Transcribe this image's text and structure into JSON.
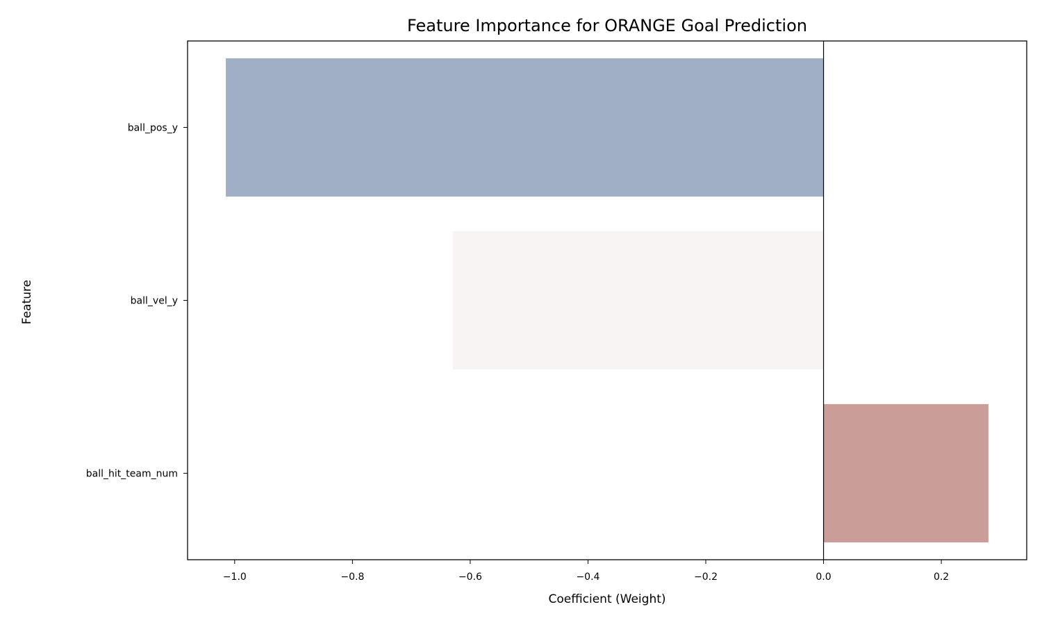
{
  "chart_data": {
    "type": "bar",
    "orientation": "horizontal",
    "title": "Feature Importance for ORANGE Goal Prediction",
    "xlabel": "Coefficient (Weight)",
    "ylabel": "Feature",
    "categories": [
      "ball_pos_y",
      "ball_vel_y",
      "ball_hit_team_num"
    ],
    "values": [
      -1.015,
      -0.63,
      0.28
    ],
    "colors": [
      "#a0afc6",
      "#f8f4f3",
      "#ca9d99"
    ],
    "xlim": [
      -1.08,
      0.345
    ],
    "xticks": [
      -1.0,
      -0.8,
      -0.6,
      -0.4,
      -0.2,
      0.0,
      0.2
    ],
    "xtick_labels": [
      "−1.0",
      "−0.8",
      "−0.6",
      "−0.4",
      "−0.2",
      "0.0",
      "0.2"
    ],
    "reference_line": 0.0,
    "grid": false
  }
}
